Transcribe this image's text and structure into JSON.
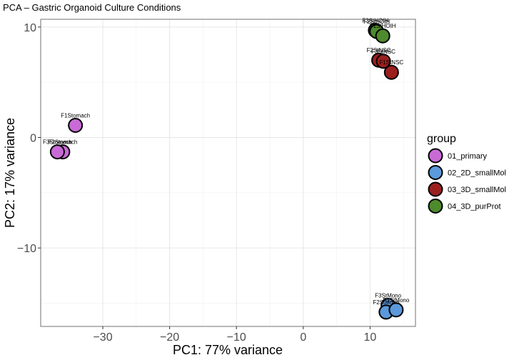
{
  "chart_data": {
    "type": "scatter",
    "title": "PCA – Gastric Organoid Culture Conditions",
    "xlabel": "PC1: 77% variance",
    "ylabel": "PC2: 17% variance",
    "xlim": [
      -39.3,
      16.8
    ],
    "ylim": [
      -17.1,
      10.7
    ],
    "x_ticks": [
      -30,
      -20,
      -10,
      0,
      10
    ],
    "x_tick_labels": [
      "−30",
      "−20",
      "−10",
      "0",
      "10"
    ],
    "y_ticks": [
      -10,
      0,
      10
    ],
    "y_tick_labels": [
      "−10",
      "0",
      "10"
    ],
    "grid": true,
    "legend_title": "group",
    "legend_position": "right",
    "series": [
      {
        "name": "01_primary",
        "color": "#c96bd6",
        "points": [
          {
            "label": "F1Stomach",
            "x": -34.1,
            "y": 1.1
          },
          {
            "label": "F2Stomach",
            "x": -36.0,
            "y": -1.3
          },
          {
            "label": "F3Stomach",
            "x": -36.8,
            "y": -1.3
          }
        ]
      },
      {
        "name": "02_2D_smallMol",
        "color": "#5b99dc",
        "points": [
          {
            "label": "F3StMono",
            "x": 12.7,
            "y": -15.2
          },
          {
            "label": "F2StMono",
            "x": 12.4,
            "y": -15.8
          },
          {
            "label": "F1StMono",
            "x": 13.9,
            "y": -15.6
          }
        ]
      },
      {
        "name": "03_3D_smallMol",
        "color": "#9c1f1f",
        "points": [
          {
            "label": "F2StNSC",
            "x": 11.3,
            "y": 7.0
          },
          {
            "label": "F3StNSC",
            "x": 12.0,
            "y": 6.9
          },
          {
            "label": "F1StNSC",
            "x": 13.2,
            "y": 5.9
          }
        ]
      },
      {
        "name": "04_3D_purProt",
        "color": "#4e8a2e",
        "points": [
          {
            "label": "F3StHOIH",
            "x": 10.8,
            "y": 9.7
          },
          {
            "label": "F2StHOIH",
            "x": 11.0,
            "y": 9.6
          },
          {
            "label": "F1StHOIH",
            "x": 11.9,
            "y": 9.2
          }
        ]
      }
    ]
  }
}
